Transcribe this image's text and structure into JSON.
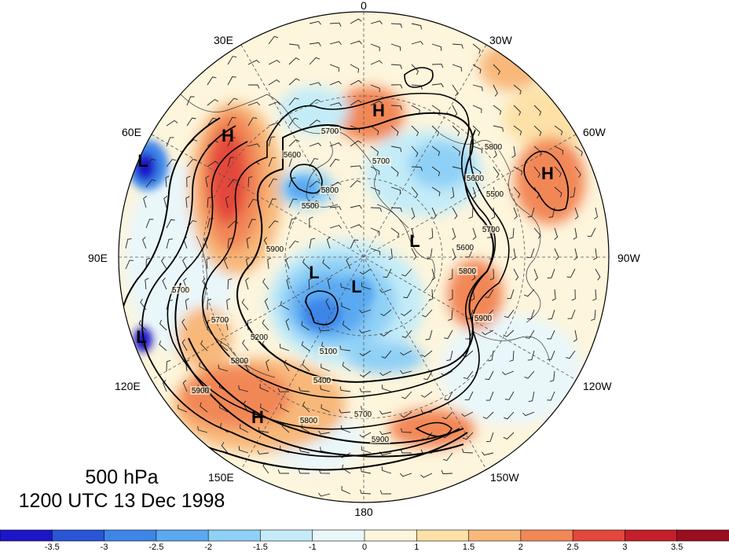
{
  "caption": {
    "level": "500 hPa",
    "time": "1200 UTC 13 Dec 1998"
  },
  "meridian_labels": {
    "lon_0": "0",
    "lon_30w": "30W",
    "lon_60w": "60W",
    "lon_90w": "90W",
    "lon_120w": "120W",
    "lon_150w": "150W",
    "lon_180": "180",
    "lon_150e": "150E",
    "lon_120e": "120E",
    "lon_90e": "90E",
    "lon_60e": "60E",
    "lon_30e": "30E"
  },
  "pressure_centers": [
    {
      "label": "H",
      "type": "high"
    },
    {
      "label": "H",
      "type": "high"
    },
    {
      "label": "H",
      "type": "high"
    },
    {
      "label": "H",
      "type": "high"
    },
    {
      "label": "L",
      "type": "low"
    },
    {
      "label": "L",
      "type": "low"
    },
    {
      "label": "L",
      "type": "low"
    },
    {
      "label": "L",
      "type": "low"
    },
    {
      "label": "L",
      "type": "low"
    }
  ],
  "contour_labels": [
    "5600",
    "5700",
    "5900",
    "5500",
    "5800",
    "5700",
    "5600",
    "5500",
    "5800",
    "5700",
    "5900",
    "5200",
    "5100",
    "5400",
    "5700",
    "5800",
    "5900",
    "5800",
    "5600",
    "5700",
    "5900",
    "5700",
    "5800"
  ],
  "colorbar": {
    "tick_labels": [
      "-3.5",
      "-3",
      "-2.5",
      "-2",
      "-1.5",
      "-1",
      "0",
      "1",
      "1.5",
      "2",
      "2.5",
      "3",
      "3.5"
    ],
    "colors": [
      "#1d16c8",
      "#2a55d6",
      "#3d86e8",
      "#5aa9f1",
      "#8fd0f6",
      "#c4ecf8",
      "#e9f7fb",
      "#fdf5dc",
      "#fde1a7",
      "#f8b87a",
      "#f28757",
      "#e4473b",
      "#c41f2a",
      "#9b0e1e"
    ]
  }
}
